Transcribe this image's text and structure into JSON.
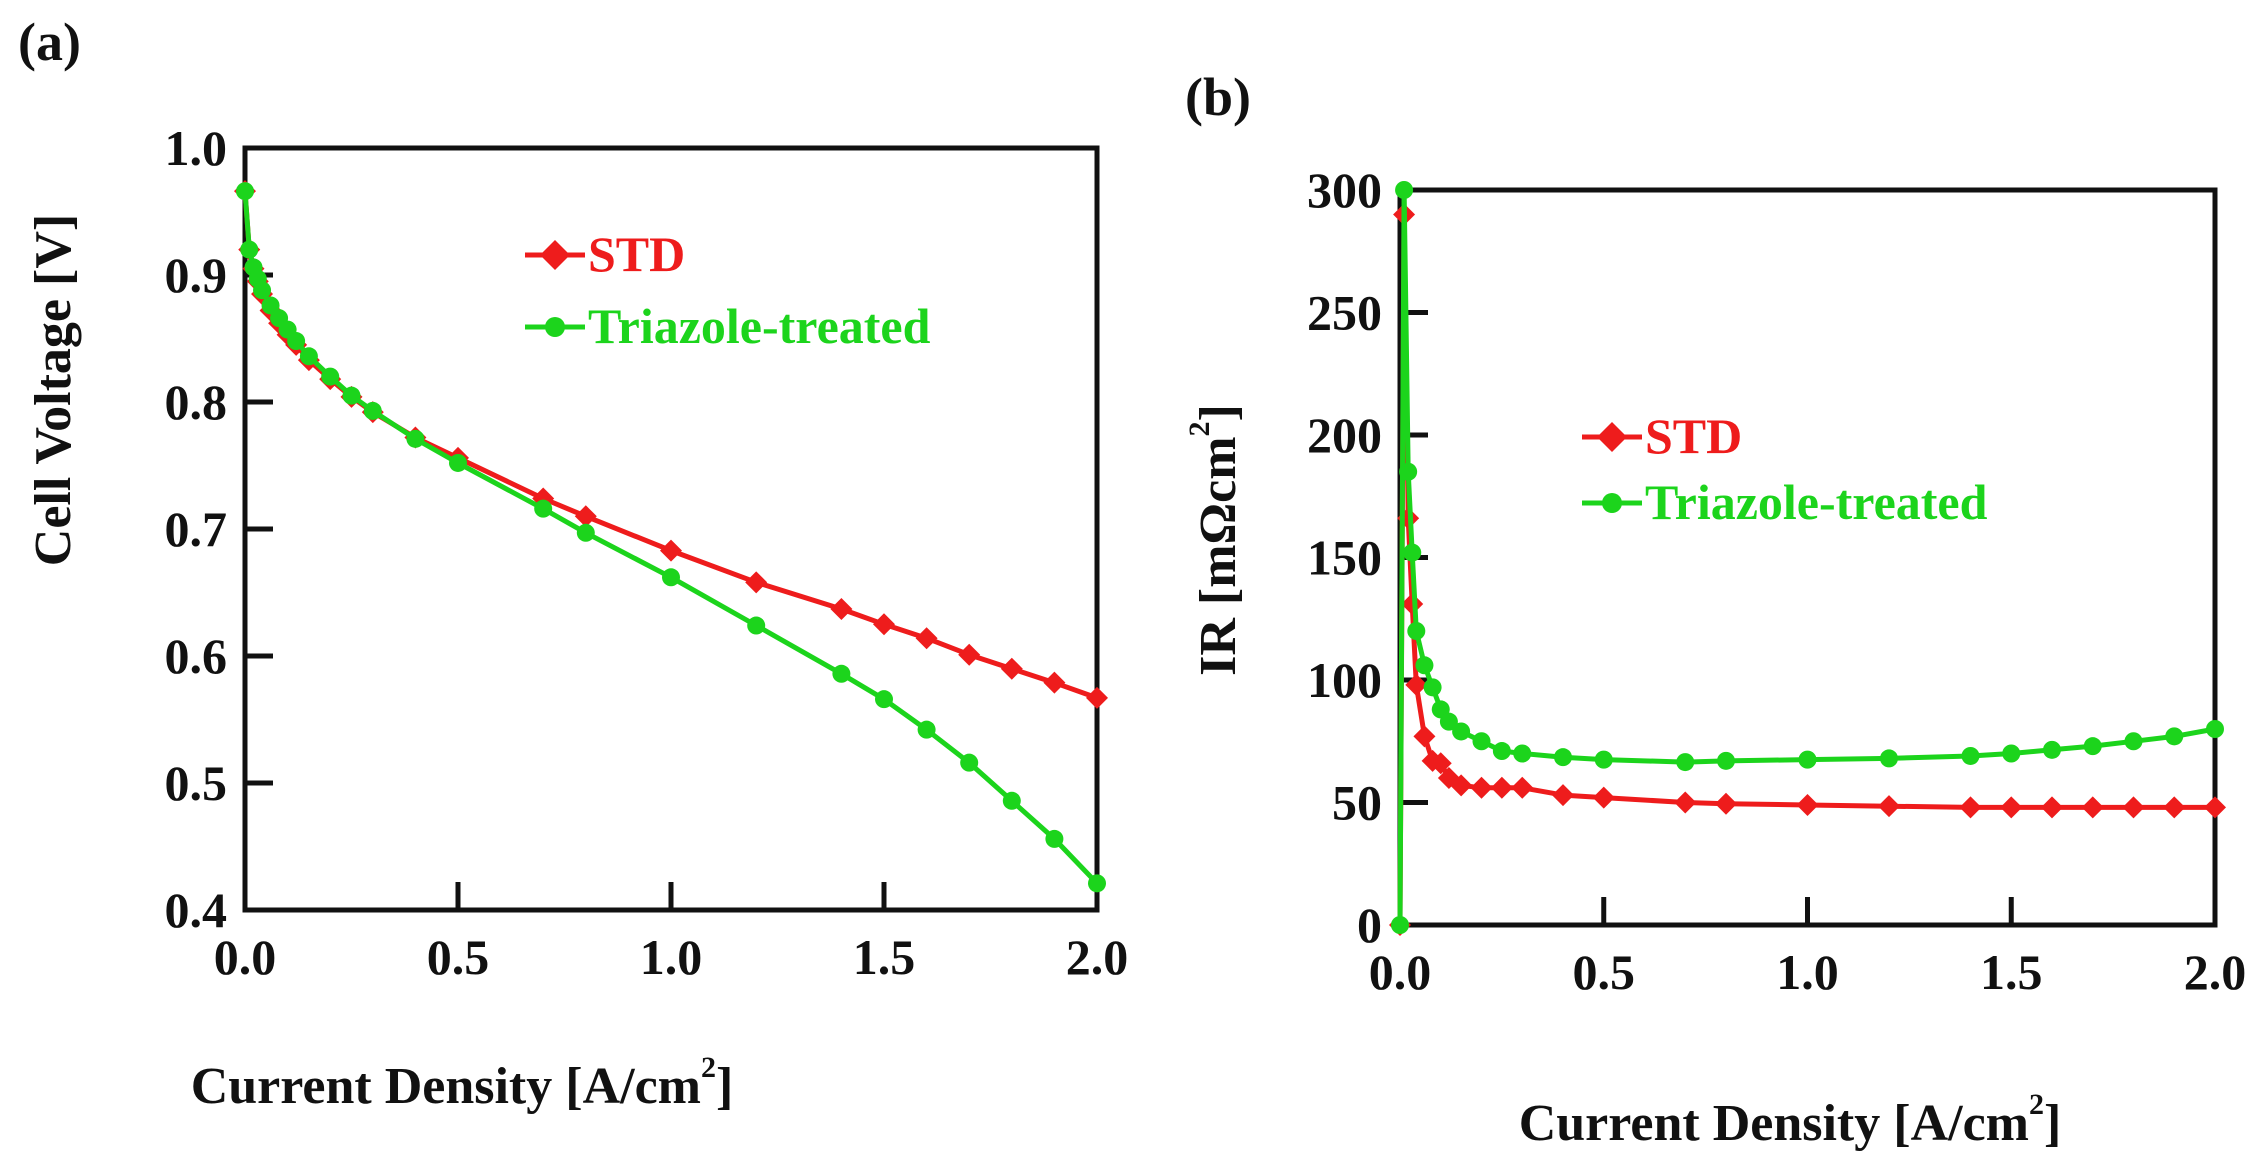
{
  "colors": {
    "std": "#ee1c1c",
    "triazole": "#1cd41c",
    "axis": "#111111"
  },
  "chart_data": [
    {
      "type": "line",
      "panel_label": "(a)",
      "xlabel": "Current Density [A/cm",
      "xlabel_sup": "2",
      "xlabel_end": "]",
      "ylabel": "Cell Voltage [V]",
      "xlim": [
        0,
        2.0
      ],
      "ylim": [
        0.4,
        1.0
      ],
      "xticks": [
        0,
        0.5,
        1.0,
        1.5,
        2.0
      ],
      "xtick_labels": [
        "0.0",
        "0.5",
        "1.0",
        "1.5",
        "2.0"
      ],
      "yticks": [
        0.4,
        0.5,
        0.6,
        0.7,
        0.8,
        0.9,
        1.0
      ],
      "ytick_labels": [
        "0.4",
        "0.5",
        "0.6",
        "0.7",
        "0.8",
        "0.9",
        "1.0"
      ],
      "legend_position": "top-right",
      "series": [
        {
          "name": "STD",
          "marker": "diamond",
          "color": "#ee1c1c",
          "x": [
            0.0,
            0.01,
            0.02,
            0.03,
            0.04,
            0.06,
            0.08,
            0.1,
            0.12,
            0.15,
            0.2,
            0.25,
            0.3,
            0.4,
            0.5,
            0.7,
            0.8,
            1.0,
            1.2,
            1.4,
            1.5,
            1.6,
            1.7,
            1.8,
            1.9,
            2.0
          ],
          "y": [
            0.966,
            0.92,
            0.905,
            0.895,
            0.885,
            0.872,
            0.862,
            0.853,
            0.845,
            0.833,
            0.818,
            0.804,
            0.792,
            0.772,
            0.756,
            0.724,
            0.71,
            0.683,
            0.658,
            0.637,
            0.625,
            0.614,
            0.601,
            0.59,
            0.579,
            0.567
          ]
        },
        {
          "name": "Triazole-treated",
          "marker": "circle",
          "color": "#1cd41c",
          "x": [
            0.0,
            0.01,
            0.02,
            0.03,
            0.04,
            0.06,
            0.08,
            0.1,
            0.12,
            0.15,
            0.2,
            0.25,
            0.3,
            0.4,
            0.5,
            0.7,
            0.8,
            1.0,
            1.2,
            1.4,
            1.5,
            1.6,
            1.7,
            1.8,
            1.9,
            2.0
          ],
          "y": [
            0.966,
            0.92,
            0.906,
            0.897,
            0.888,
            0.876,
            0.866,
            0.857,
            0.848,
            0.836,
            0.82,
            0.805,
            0.793,
            0.771,
            0.752,
            0.716,
            0.697,
            0.662,
            0.624,
            0.586,
            0.566,
            0.542,
            0.516,
            0.486,
            0.456,
            0.421
          ]
        }
      ]
    },
    {
      "type": "line",
      "panel_label": "(b)",
      "xlabel": "Current Density [A/cm",
      "xlabel_sup": "2",
      "xlabel_end": "]",
      "ylabel": "IR [mΩcm",
      "ylabel_sup": "2",
      "ylabel_end": "]",
      "xlim": [
        0,
        2.0
      ],
      "ylim": [
        0,
        300
      ],
      "xticks": [
        0,
        0.5,
        1.0,
        1.5,
        2.0
      ],
      "xtick_labels": [
        "0.0",
        "0.5",
        "1.0",
        "1.5",
        "2.0"
      ],
      "yticks": [
        0,
        50,
        100,
        150,
        200,
        250,
        300
      ],
      "ytick_labels": [
        "0",
        "50",
        "100",
        "150",
        "200",
        "250",
        "300"
      ],
      "legend_position": "center-right",
      "series": [
        {
          "name": "STD",
          "marker": "diamond",
          "color": "#ee1c1c",
          "x": [
            0.0,
            0.01,
            0.02,
            0.03,
            0.04,
            0.06,
            0.08,
            0.1,
            0.12,
            0.15,
            0.2,
            0.25,
            0.3,
            0.4,
            0.5,
            0.7,
            0.8,
            1.0,
            1.2,
            1.4,
            1.5,
            1.6,
            1.7,
            1.8,
            1.9,
            2.0
          ],
          "y": [
            0,
            290,
            166,
            131,
            98,
            77,
            67,
            66,
            60,
            57,
            56,
            56,
            56,
            53,
            52,
            50,
            49.5,
            49,
            48.5,
            48,
            48,
            48,
            48,
            48,
            48,
            48
          ]
        },
        {
          "name": "Triazole-treated",
          "marker": "circle",
          "color": "#1cd41c",
          "x": [
            0.0,
            0.01,
            0.02,
            0.03,
            0.04,
            0.06,
            0.08,
            0.1,
            0.12,
            0.15,
            0.2,
            0.25,
            0.3,
            0.4,
            0.5,
            0.7,
            0.8,
            1.0,
            1.2,
            1.4,
            1.5,
            1.6,
            1.7,
            1.8,
            1.9,
            2.0
          ],
          "y": [
            0,
            300,
            185,
            152,
            120,
            106,
            97,
            88,
            83,
            79,
            75,
            71,
            70,
            68.5,
            67.5,
            66.5,
            67,
            67.5,
            68,
            69,
            70,
            71.5,
            73,
            75,
            77,
            80
          ]
        }
      ]
    }
  ]
}
